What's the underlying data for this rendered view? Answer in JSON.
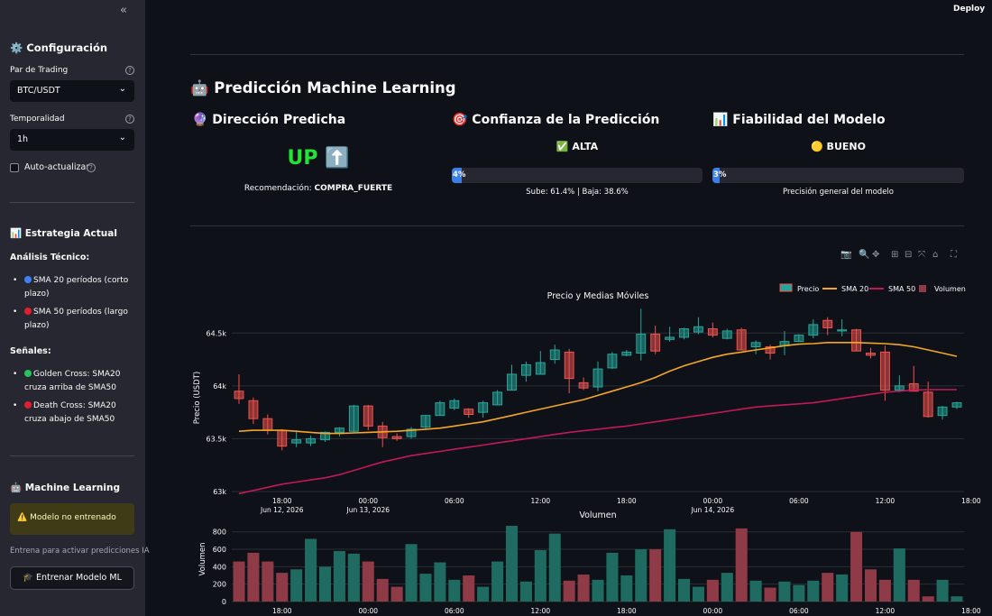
{
  "sidebar": {
    "collapse_glyph": "«",
    "config_title": "⚙️ Configuración",
    "pair_label": "Par de Trading",
    "pair_value": "BTC/USDT",
    "timeframe_label": "Temporalidad",
    "timeframe_value": "1h",
    "auto_update_label": "Auto-actualizar",
    "strategy_title": "📊 Estrategia Actual",
    "tech_title": "Análisis Técnico:",
    "tech_items": [
      "SMA 20 períodos (corto plazo)",
      "SMA 50 períodos (largo plazo)"
    ],
    "signals_title": "Señales:",
    "signal_items": [
      "Golden Cross: SMA20 cruza arriba de SMA50",
      "Death Cross: SMA20 cruza abajo de SMA50"
    ],
    "ml_title": "🤖 Machine Learning",
    "warning": "⚠️ Modelo no entrenado",
    "caption": "Entrena para activar predicciones IA",
    "train_button": "🎓 Entrenar Modelo ML",
    "dot_colors": {
      "blue": "#3b82f6",
      "red": "#e11d2e",
      "green": "#22c55e"
    }
  },
  "header": {
    "deploy": "Deploy"
  },
  "prediction": {
    "title": "🤖 Predicción Machine Learning",
    "direction_title": "🔮 Dirección Predicha",
    "direction_value": "UP ⬆️",
    "recommendation_label": "Recomendación:",
    "recommendation_value": "COMPRA_FUERTE",
    "confidence_title": "🎯 Confianza de la Predicción",
    "confidence_level": "✅ ALTA",
    "confidence_pct_text": "4%",
    "confidence_fraction": 0.04,
    "confidence_caption": "Sube: 61.4% | Baja: 38.6%",
    "reliability_title": "📊 Fiabilidad del Modelo",
    "reliability_level": "🟡 BUENO",
    "reliability_pct_text": "3%",
    "reliability_fraction": 0.03,
    "reliability_caption": "Precisión general del modelo",
    "accent_green": "#22e336"
  },
  "toolbar_icons": [
    "camera-icon",
    "zoom-icon",
    "pan-icon",
    "zoom-in-icon",
    "zoom-out-icon",
    "autoscale-icon",
    "home-icon",
    "fullscreen-icon"
  ],
  "chart_data": [
    {
      "type": "candlestick",
      "title": "Precio y Medias Móviles",
      "ylabel": "Precio (USDT)",
      "ylim": [
        63000,
        64750
      ],
      "yticks": [
        "63k",
        "63.5k",
        "64k",
        "64.5k"
      ],
      "ytick_values": [
        63000,
        63500,
        64000,
        64500
      ],
      "xticks": [
        {
          "hours": 6,
          "label": "18:00",
          "sub": "Jun 12, 2026"
        },
        {
          "hours": 12,
          "label": "00:00",
          "sub": "Jun 13, 2026"
        },
        {
          "hours": 18,
          "label": "06:00",
          "sub": ""
        },
        {
          "hours": 24,
          "label": "12:00",
          "sub": ""
        },
        {
          "hours": 30,
          "label": "18:00",
          "sub": ""
        },
        {
          "hours": 36,
          "label": "00:00",
          "sub": "Jun 14, 2026"
        },
        {
          "hours": 42,
          "label": "06:00",
          "sub": ""
        },
        {
          "hours": 48,
          "label": "12:00",
          "sub": ""
        },
        {
          "hours": 54,
          "label": "18:00",
          "sub": ""
        }
      ],
      "legend": [
        "Precio",
        "SMA 20",
        "SMA 50",
        "Volumen"
      ],
      "colors": {
        "up": "#26a69a",
        "down": "#ef5350",
        "sma20": "#f5a623",
        "sma50": "#c2185b",
        "vol_up": "#26a69a",
        "vol_down": "#ef5350"
      },
      "candles": [
        [
          63950,
          63880,
          64110,
          63830
        ],
        [
          63860,
          63690,
          63890,
          63640
        ],
        [
          63690,
          63580,
          63730,
          63540
        ],
        [
          63580,
          63430,
          63590,
          63390
        ],
        [
          63460,
          63490,
          63580,
          63420
        ],
        [
          63460,
          63500,
          63530,
          63430
        ],
        [
          63490,
          63560,
          63570,
          63470
        ],
        [
          63560,
          63600,
          63610,
          63520
        ],
        [
          63570,
          63810,
          63820,
          63560
        ],
        [
          63810,
          63620,
          63820,
          63580
        ],
        [
          63620,
          63510,
          63660,
          63420
        ],
        [
          63520,
          63500,
          63550,
          63480
        ],
        [
          63520,
          63590,
          63610,
          63500
        ],
        [
          63610,
          63720,
          63720,
          63590
        ],
        [
          63720,
          63840,
          63860,
          63720
        ],
        [
          63790,
          63860,
          63880,
          63770
        ],
        [
          63780,
          63730,
          63790,
          63700
        ],
        [
          63750,
          63840,
          63860,
          63700
        ],
        [
          63820,
          63940,
          63960,
          63820
        ],
        [
          63960,
          64110,
          64200,
          63960
        ],
        [
          64100,
          64200,
          64230,
          64040
        ],
        [
          64110,
          64220,
          64330,
          64110
        ],
        [
          64250,
          64340,
          64390,
          64210
        ],
        [
          64320,
          64070,
          64350,
          63930
        ],
        [
          64030,
          63980,
          64080,
          63960
        ],
        [
          63990,
          64160,
          64230,
          63950
        ],
        [
          64170,
          64300,
          64320,
          64160
        ],
        [
          64290,
          64320,
          64340,
          64280
        ],
        [
          64310,
          64490,
          64730,
          64240
        ],
        [
          64490,
          64330,
          64570,
          64300
        ],
        [
          64440,
          64460,
          64560,
          64420
        ],
        [
          64460,
          64540,
          64550,
          64440
        ],
        [
          64510,
          64560,
          64650,
          64490
        ],
        [
          64540,
          64480,
          64600,
          64460
        ],
        [
          64450,
          64520,
          64540,
          64440
        ],
        [
          64530,
          64340,
          64550,
          64340
        ],
        [
          64370,
          64410,
          64430,
          64300
        ],
        [
          64370,
          64310,
          64390,
          64250
        ],
        [
          64380,
          64420,
          64520,
          64290
        ],
        [
          64420,
          64480,
          64490,
          64420
        ],
        [
          64480,
          64580,
          64630,
          64450
        ],
        [
          64620,
          64550,
          64650,
          64480
        ],
        [
          64520,
          64530,
          64630,
          64470
        ],
        [
          64530,
          64330,
          64540,
          64330
        ],
        [
          64310,
          64290,
          64360,
          64260
        ],
        [
          64320,
          63960,
          64380,
          63860
        ],
        [
          63960,
          64000,
          64100,
          63940
        ],
        [
          64020,
          63950,
          64190,
          63950
        ],
        [
          63940,
          63710,
          64040,
          63700
        ],
        [
          63720,
          63800,
          63810,
          63680
        ],
        [
          63800,
          63840,
          63850,
          63780
        ]
      ],
      "sma20": [
        63570,
        63580,
        63580,
        63580,
        63570,
        63560,
        63550,
        63550,
        63555,
        63560,
        63565,
        63570,
        63580,
        63590,
        63600,
        63620,
        63640,
        63660,
        63690,
        63720,
        63750,
        63780,
        63810,
        63840,
        63870,
        63910,
        63950,
        63990,
        64030,
        64080,
        64140,
        64190,
        64230,
        64270,
        64300,
        64320,
        64340,
        64360,
        64380,
        64395,
        64400,
        64410,
        64410,
        64410,
        64405,
        64400,
        64390,
        64370,
        64340,
        64310,
        64280
      ],
      "sma50": [
        62980,
        63010,
        63040,
        63070,
        63090,
        63110,
        63130,
        63160,
        63200,
        63240,
        63280,
        63310,
        63340,
        63360,
        63380,
        63400,
        63420,
        63440,
        63460,
        63480,
        63500,
        63520,
        63540,
        63560,
        63575,
        63590,
        63605,
        63620,
        63640,
        63660,
        63680,
        63700,
        63720,
        63740,
        63760,
        63780,
        63800,
        63810,
        63820,
        63830,
        63840,
        63860,
        63880,
        63900,
        63920,
        63940,
        63950,
        63960,
        63965,
        63965,
        63965
      ]
    },
    {
      "type": "bar",
      "title": "Volumen",
      "ylabel": "Volumen",
      "ylim": [
        0,
        880
      ],
      "yticks": [
        0,
        200,
        400,
        600,
        800
      ],
      "xticks": [
        "18:00",
        "00:00",
        "06:00",
        "12:00",
        "18:00",
        "00:00",
        "06:00",
        "12:00",
        "18:00"
      ],
      "values": [
        460,
        560,
        460,
        330,
        370,
        720,
        400,
        580,
        550,
        460,
        260,
        170,
        660,
        320,
        450,
        250,
        300,
        170,
        460,
        870,
        230,
        590,
        780,
        240,
        310,
        250,
        560,
        300,
        600,
        600,
        830,
        260,
        170,
        250,
        330,
        840,
        240,
        160,
        230,
        190,
        240,
        330,
        310,
        800,
        370,
        250,
        610,
        250,
        60,
        250,
        60
      ]
    }
  ]
}
